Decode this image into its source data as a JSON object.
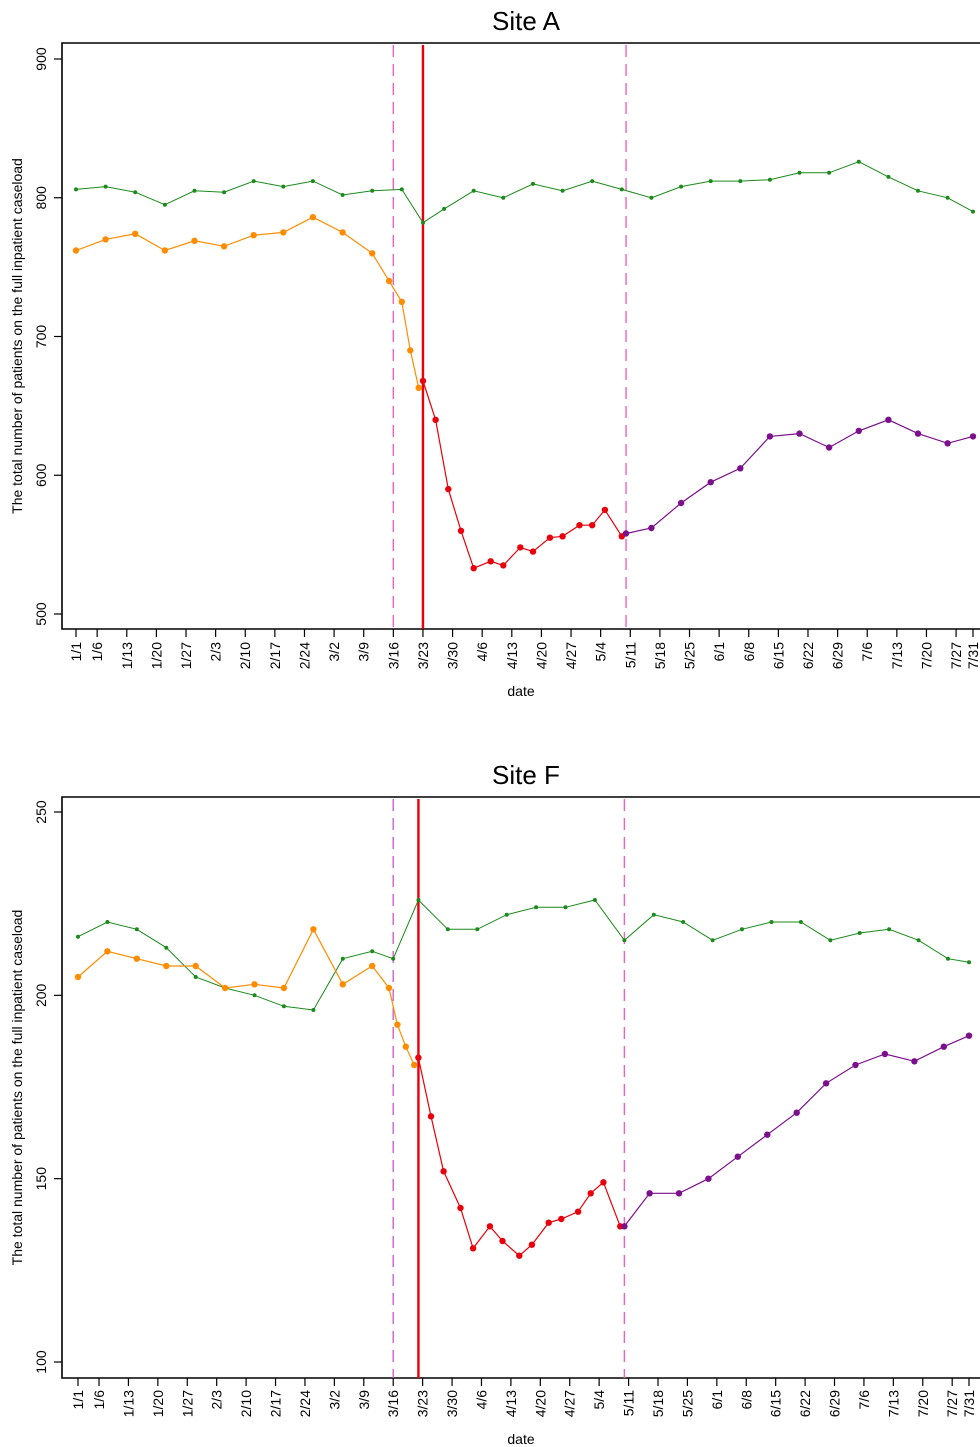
{
  "chart_data": [
    {
      "type": "line",
      "title": "Site A",
      "xlabel": "date",
      "ylabel": "The total number of patients on the full inpatient caseload",
      "ylim": [
        500,
        900
      ],
      "yticks": [
        500,
        600,
        700,
        800,
        900
      ],
      "xticks": [
        "1/1",
        "1/6",
        "1/13",
        "1/20",
        "1/27",
        "2/3",
        "2/10",
        "2/17",
        "2/24",
        "3/2",
        "3/9",
        "3/16",
        "3/23",
        "3/30",
        "4/6",
        "4/13",
        "4/20",
        "4/27",
        "5/4",
        "5/11",
        "5/18",
        "5/25",
        "6/1",
        "6/8",
        "6/15",
        "6/22",
        "6/29",
        "7/6",
        "7/13",
        "7/20",
        "7/27",
        "7/31"
      ],
      "vlines": [
        {
          "date": "3/16",
          "style": "dashed",
          "color": "#f060c0"
        },
        {
          "date": "3/23",
          "style": "solid",
          "color": "#e8000b"
        },
        {
          "date": "5/10",
          "style": "dashed",
          "color": "#f060c0"
        }
      ],
      "series": [
        {
          "color": "#1a8a1a",
          "style": "small-points",
          "x": [
            "1/1",
            "1/8",
            "1/15",
            "1/22",
            "1/29",
            "2/5",
            "2/12",
            "2/19",
            "2/26",
            "3/4",
            "3/11",
            "3/18",
            "3/23",
            "3/28",
            "4/4",
            "4/11",
            "4/18",
            "4/25",
            "5/2",
            "5/9",
            "5/16",
            "5/23",
            "5/30",
            "6/6",
            "6/13",
            "6/20",
            "6/27",
            "7/4",
            "7/11",
            "7/18",
            "7/25",
            "7/31"
          ],
          "y": [
            806,
            808,
            804,
            795,
            805,
            804,
            812,
            808,
            812,
            802,
            805,
            806,
            782,
            792,
            805,
            800,
            810,
            805,
            812,
            806,
            800,
            808,
            812,
            812,
            813,
            818,
            818,
            826,
            815,
            805,
            800,
            790
          ]
        },
        {
          "color": "#ff8c00",
          "style": "points",
          "x": [
            "1/1",
            "1/8",
            "1/15",
            "1/22",
            "1/29",
            "2/5",
            "2/12",
            "2/19",
            "2/26",
            "3/4",
            "3/11",
            "3/15",
            "3/18",
            "3/20",
            "3/22"
          ],
          "y": [
            762,
            770,
            774,
            762,
            769,
            765,
            773,
            775,
            786,
            775,
            760,
            740,
            725,
            690,
            663
          ]
        },
        {
          "color": "#e8000b",
          "style": "points",
          "x": [
            "3/23",
            "3/26",
            "3/29",
            "4/1",
            "4/4",
            "4/8",
            "4/11",
            "4/15",
            "4/18",
            "4/22",
            "4/25",
            "4/29",
            "5/2",
            "5/5",
            "5/9"
          ],
          "y": [
            668,
            640,
            590,
            560,
            533,
            538,
            535,
            548,
            545,
            555,
            556,
            564,
            564,
            575,
            556
          ]
        },
        {
          "color": "#7b0f8c",
          "style": "points",
          "x": [
            "5/10",
            "5/16",
            "5/23",
            "5/30",
            "6/6",
            "6/13",
            "6/20",
            "6/27",
            "7/4",
            "7/11",
            "7/18",
            "7/25",
            "7/31"
          ],
          "y": [
            558,
            562,
            580,
            595,
            605,
            628,
            630,
            620,
            632,
            640,
            630,
            623,
            628
          ]
        }
      ]
    },
    {
      "type": "line",
      "title": "Site F",
      "xlabel": "date",
      "ylabel": "The total number of patients on the full inpatient caseload",
      "ylim": [
        100,
        250
      ],
      "yticks": [
        100,
        150,
        200,
        250
      ],
      "xticks": [
        "1/1",
        "1/6",
        "1/13",
        "1/20",
        "1/27",
        "2/3",
        "2/10",
        "2/17",
        "2/24",
        "3/2",
        "3/9",
        "3/16",
        "3/23",
        "3/30",
        "4/6",
        "4/13",
        "4/20",
        "4/27",
        "5/4",
        "5/11",
        "5/18",
        "5/25",
        "6/1",
        "6/8",
        "6/15",
        "6/22",
        "6/29",
        "7/6",
        "7/13",
        "7/20",
        "7/27",
        "7/31"
      ],
      "vlines": [
        {
          "date": "3/16",
          "style": "dashed",
          "color": "#d060d0"
        },
        {
          "date": "3/22",
          "style": "solid",
          "color": "#e8000b"
        },
        {
          "date": "5/10",
          "style": "dashed",
          "color": "#f060c0"
        }
      ],
      "series": [
        {
          "color": "#1a8a1a",
          "style": "small-points",
          "x": [
            "1/1",
            "1/8",
            "1/15",
            "1/22",
            "1/29",
            "2/5",
            "2/12",
            "2/19",
            "2/26",
            "3/4",
            "3/11",
            "3/16",
            "3/22",
            "3/29",
            "4/5",
            "4/12",
            "4/19",
            "4/26",
            "5/3",
            "5/10",
            "5/17",
            "5/24",
            "5/31",
            "6/7",
            "6/14",
            "6/21",
            "6/28",
            "7/5",
            "7/12",
            "7/19",
            "7/26",
            "7/31"
          ],
          "y": [
            216,
            220,
            218,
            213,
            205,
            202,
            200,
            197,
            196,
            210,
            212,
            210,
            226,
            218,
            218,
            222,
            224,
            224,
            226,
            215,
            222,
            220,
            215,
            218,
            220,
            220,
            215,
            217,
            218,
            215,
            210,
            209
          ]
        },
        {
          "color": "#ff8c00",
          "style": "points",
          "x": [
            "1/1",
            "1/8",
            "1/15",
            "1/22",
            "1/29",
            "2/5",
            "2/12",
            "2/19",
            "2/26",
            "3/4",
            "3/11",
            "3/15",
            "3/17",
            "3/19",
            "3/21"
          ],
          "y": [
            205,
            212,
            210,
            208,
            208,
            202,
            203,
            202,
            218,
            203,
            208,
            202,
            192,
            186,
            181
          ]
        },
        {
          "color": "#e8000b",
          "style": "points",
          "x": [
            "3/22",
            "3/25",
            "3/28",
            "4/1",
            "4/4",
            "4/8",
            "4/11",
            "4/15",
            "4/18",
            "4/22",
            "4/25",
            "4/29",
            "5/2",
            "5/5",
            "5/9"
          ],
          "y": [
            183,
            167,
            152,
            142,
            131,
            137,
            133,
            129,
            132,
            138,
            139,
            141,
            146,
            149,
            137
          ]
        },
        {
          "color": "#7b0f8c",
          "style": "points",
          "x": [
            "5/10",
            "5/16",
            "5/23",
            "5/30",
            "6/6",
            "6/13",
            "6/20",
            "6/27",
            "7/4",
            "7/11",
            "7/18",
            "7/25",
            "7/31"
          ],
          "y": [
            137,
            146,
            146,
            150,
            156,
            162,
            168,
            176,
            181,
            184,
            182,
            186,
            189
          ]
        }
      ]
    }
  ]
}
